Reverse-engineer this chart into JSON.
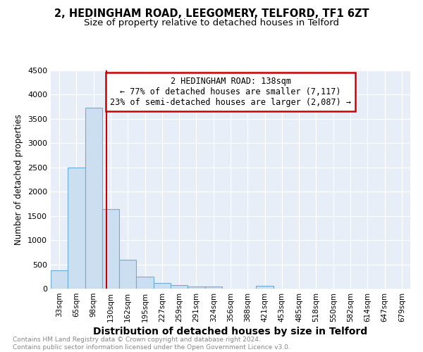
{
  "title1": "2, HEDINGHAM ROAD, LEEGOMERY, TELFORD, TF1 6ZT",
  "title2": "Size of property relative to detached houses in Telford",
  "xlabel": "Distribution of detached houses by size in Telford",
  "ylabel": "Number of detached properties",
  "categories": [
    "33sqm",
    "65sqm",
    "98sqm",
    "130sqm",
    "162sqm",
    "195sqm",
    "227sqm",
    "259sqm",
    "291sqm",
    "324sqm",
    "356sqm",
    "388sqm",
    "421sqm",
    "453sqm",
    "485sqm",
    "518sqm",
    "550sqm",
    "582sqm",
    "614sqm",
    "647sqm",
    "679sqm"
  ],
  "values": [
    375,
    2500,
    3730,
    1640,
    600,
    240,
    110,
    70,
    50,
    50,
    0,
    0,
    60,
    0,
    0,
    0,
    0,
    0,
    0,
    0,
    0
  ],
  "bar_color": "#ccdff0",
  "bar_edge_color": "#6aaed6",
  "vline_color": "#cc0000",
  "annotation_text": "2 HEDINGHAM ROAD: 138sqm\n← 77% of detached houses are smaller (7,117)\n23% of semi-detached houses are larger (2,087) →",
  "annotation_box_color": "#ffffff",
  "annotation_box_edge_color": "#cc0000",
  "ylim": [
    0,
    4500
  ],
  "yticks": [
    0,
    500,
    1000,
    1500,
    2000,
    2500,
    3000,
    3500,
    4000,
    4500
  ],
  "footnote": "Contains HM Land Registry data © Crown copyright and database right 2024.\nContains public sector information licensed under the Open Government Licence v3.0.",
  "bg_color": "#e8eef8",
  "title1_fontsize": 10.5,
  "title2_fontsize": 9.5,
  "xlabel_fontsize": 10,
  "ylabel_fontsize": 8.5
}
